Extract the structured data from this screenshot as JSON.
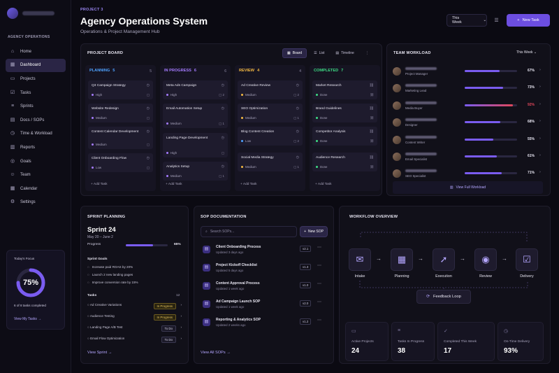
{
  "sidebar": {
    "section_label": "AGENCY OPERATIONS",
    "items": [
      {
        "label": "Home",
        "icon": "home-icon",
        "glyph": "⌂"
      },
      {
        "label": "Dashboard",
        "icon": "dashboard-icon",
        "glyph": "▦",
        "active": true
      },
      {
        "label": "Projects",
        "icon": "folder-icon",
        "glyph": "▭"
      },
      {
        "label": "Tasks",
        "icon": "checkbox-icon",
        "glyph": "☑"
      },
      {
        "label": "Sprints",
        "icon": "sprint-icon",
        "glyph": "≡"
      },
      {
        "label": "Docs / SOPs",
        "icon": "document-icon",
        "glyph": "▤"
      },
      {
        "label": "Time & Workload",
        "icon": "clock-icon",
        "glyph": "◷"
      },
      {
        "label": "Reports",
        "icon": "chart-icon",
        "glyph": "▥"
      },
      {
        "label": "Goals",
        "icon": "target-icon",
        "glyph": "◎"
      },
      {
        "label": "Team",
        "icon": "people-icon",
        "glyph": "☺"
      },
      {
        "label": "Calendar",
        "icon": "calendar-icon",
        "glyph": "▦"
      },
      {
        "label": "Settings",
        "icon": "gear-icon",
        "glyph": "⚙"
      }
    ],
    "focus": {
      "title": "Today's Focus",
      "percent_label": "75%",
      "percent": 0.75,
      "subtitle": "6 of 8 tasks completed",
      "link": "View My Tasks"
    }
  },
  "header": {
    "tag": "PROJECT 3",
    "title": "Agency Operations System",
    "subtitle": "Operations & Project Management Hub",
    "range_select": "This Week",
    "new_task": "New Task"
  },
  "board": {
    "title": "PROJECT BOARD",
    "tabs": [
      "Board",
      "List",
      "Timeline"
    ],
    "add_task": "Add Task",
    "columns": [
      {
        "name": "PLANNING",
        "count": "5",
        "total": "5",
        "color": "#4ea3ff",
        "cards": [
          {
            "title": "Q3 Campaign Strategy",
            "priority": "High",
            "pcolor": "#a57bff",
            "meta": ""
          },
          {
            "title": "Website Redesign",
            "priority": "Medium",
            "pcolor": "#a57bff",
            "meta": ""
          },
          {
            "title": "Content Calendar Development",
            "priority": "Medium",
            "pcolor": "#a57bff",
            "meta": ""
          },
          {
            "title": "Client Onboarding Flow",
            "priority": "Low",
            "pcolor": "#a57bff",
            "meta": ""
          }
        ]
      },
      {
        "name": "IN PROGRESS",
        "count": "6",
        "total": "6",
        "color": "#a57bff",
        "cards": [
          {
            "title": "Meta Ads Campaign",
            "priority": "High",
            "pcolor": "#a57bff",
            "meta": "2"
          },
          {
            "title": "Email Automation Setup",
            "priority": "Medium",
            "pcolor": "#a57bff",
            "meta": "1"
          },
          {
            "title": "Landing Page Development",
            "priority": "High",
            "pcolor": "#a57bff",
            "meta": ""
          },
          {
            "title": "Analytics Setup",
            "priority": "Medium",
            "pcolor": "#a57bff",
            "meta": "1"
          }
        ]
      },
      {
        "name": "REVIEW",
        "count": "4",
        "total": "4",
        "color": "#f5b942",
        "cards": [
          {
            "title": "Ad Creative Review",
            "priority": "Medium",
            "pcolor": "#f5b942",
            "meta": "2"
          },
          {
            "title": "SEO Optimization",
            "priority": "Medium",
            "pcolor": "#f5b942",
            "meta": "1"
          },
          {
            "title": "Blog Content Creation",
            "priority": "Low",
            "pcolor": "#4ea3ff",
            "meta": "2"
          },
          {
            "title": "Social Media Strategy",
            "priority": "Medium",
            "pcolor": "#f5b942",
            "meta": "1"
          }
        ]
      },
      {
        "name": "COMPLETED",
        "count": "7",
        "total": "",
        "color": "#3ddc84",
        "cards": [
          {
            "title": "Market Research",
            "priority": "Done",
            "pcolor": "#3ddc84",
            "meta": ""
          },
          {
            "title": "Brand Guidelines",
            "priority": "Done",
            "pcolor": "#3ddc84",
            "meta": ""
          },
          {
            "title": "Competitor Analysis",
            "priority": "Done",
            "pcolor": "#3ddc84",
            "meta": ""
          },
          {
            "title": "Audience Research",
            "priority": "Done",
            "pcolor": "#3ddc84",
            "meta": ""
          }
        ]
      }
    ]
  },
  "workload": {
    "title": "TEAM WORKLOAD",
    "range": "This Week",
    "members": [
      {
        "role": "Project Manager",
        "pct": "67%",
        "value": 0.67,
        "over": false
      },
      {
        "role": "Marketing Lead",
        "pct": "73%",
        "value": 0.73,
        "over": false
      },
      {
        "role": "Media Buyer",
        "pct": "92%",
        "value": 0.92,
        "over": true
      },
      {
        "role": "Designer",
        "pct": "68%",
        "value": 0.68,
        "over": false
      },
      {
        "role": "Content Writer",
        "pct": "55%",
        "value": 0.55,
        "over": false
      },
      {
        "role": "Email Specialist",
        "pct": "61%",
        "value": 0.61,
        "over": false
      },
      {
        "role": "SEO Specialist",
        "pct": "71%",
        "value": 0.71,
        "over": false
      }
    ],
    "view_full": "View Full Workload"
  },
  "sprint": {
    "title": "SPRINT PLANNING",
    "name": "Sprint 24",
    "dates": "May 20 – June 2",
    "progress_label": "Progress",
    "progress_pct": "65%",
    "progress": 0.65,
    "goals_label": "Sprint Goals",
    "goals": [
      "Increase paid ROAS by 20%",
      "Launch 2 new landing pages",
      "Improve conversion rate by 15%"
    ],
    "tasks_label": "Tasks",
    "tasks_count": "12",
    "tasks": [
      {
        "name": "Ad Creative Variations",
        "status": "In Progress",
        "todo": false
      },
      {
        "name": "Audience Testing",
        "status": "In Progress",
        "todo": false
      },
      {
        "name": "Landing Page A/B Test",
        "status": "To Do",
        "todo": true
      },
      {
        "name": "Email Flow Optimization",
        "status": "To Do",
        "todo": true
      }
    ],
    "link": "View Sprint"
  },
  "sop": {
    "title": "SOP DOCUMENTATION",
    "search_placeholder": "Search SOPs...",
    "new_label": "New SOP",
    "items": [
      {
        "name": "Client Onboarding Process",
        "updated": "Updated 3 days ago",
        "version": "v2.1"
      },
      {
        "name": "Project Kickoff Checklist",
        "updated": "Updated 5 days ago",
        "version": "v1.3"
      },
      {
        "name": "Content Approval Process",
        "updated": "Updated 1 week ago",
        "version": "v1.0"
      },
      {
        "name": "Ad Campaign Launch SOP",
        "updated": "Updated 1 week ago",
        "version": "v2.0"
      },
      {
        "name": "Reporting & Analytics SOP",
        "updated": "Updated 2 weeks ago",
        "version": "v1.2"
      }
    ],
    "link": "View All SOPs"
  },
  "workflow": {
    "title": "WORKFLOW OVERVIEW",
    "steps": [
      {
        "label": "Intake",
        "icon": "message-icon"
      },
      {
        "label": "Planning",
        "icon": "calendar-icon"
      },
      {
        "label": "Execution",
        "icon": "rocket-icon"
      },
      {
        "label": "Review",
        "icon": "eye-icon"
      },
      {
        "label": "Delivery",
        "icon": "check-square-icon"
      }
    ],
    "feedback": "Feedback Loop"
  },
  "stats": [
    {
      "label": "Active Projects",
      "value": "24",
      "icon": "folder-icon",
      "glyph": "▭"
    },
    {
      "label": "Tasks In Progress",
      "value": "38",
      "icon": "list-icon",
      "glyph": "≡"
    },
    {
      "label": "Completed This Week",
      "value": "17",
      "icon": "check-icon",
      "glyph": "✓"
    },
    {
      "label": "On-Time Delivery",
      "value": "93%",
      "icon": "clock-icon",
      "glyph": "◷"
    }
  ],
  "colors": {
    "accent": "#6c4ee0",
    "bar": "#7a5cf0",
    "over": "#e0475b"
  }
}
